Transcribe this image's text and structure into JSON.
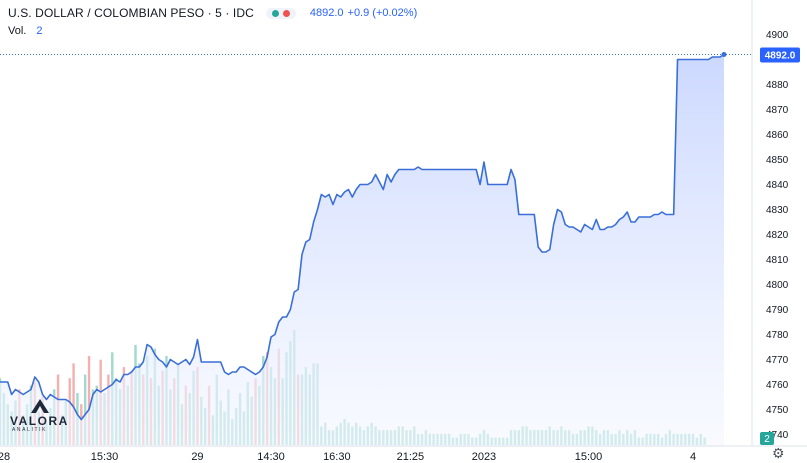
{
  "header": {
    "symbol_title": "U.S. DOLLAR / COLOMBIAN PESO · 5 · IDC",
    "last_price": "4892.0",
    "change": "+0.9 (+0.02%)",
    "volume_label": "Vol.",
    "volume_value": "2"
  },
  "colors": {
    "line": "#3a6fd8",
    "area_top": "#c9d6ff",
    "area_bottom": "#f4f7ff",
    "volume_up": "#9fd9cf",
    "volume_down": "#f4b0b0",
    "price_label_bg": "#2962ff",
    "volume_label_bg": "#26a69a",
    "status_green": "#26a69a",
    "status_red": "#ef5350"
  },
  "icons": {
    "status": [
      "green-dot-icon",
      "red-dot-icon"
    ],
    "settings": "gear-icon",
    "logo": "valora-analitik-logo"
  },
  "logo": {
    "word": "VALORA",
    "sub": "ANALITIK"
  },
  "chart_data": {
    "type": "area",
    "title": "U.S. DOLLAR / COLOMBIAN PESO · 5 · IDC",
    "xlabel": "",
    "ylabel": "",
    "ylim": [
      4735,
      4905
    ],
    "y_ticks": [
      4740,
      4750,
      4760,
      4770,
      4780,
      4790,
      4800,
      4810,
      4820,
      4830,
      4840,
      4850,
      4860,
      4870,
      4880,
      4890,
      4900
    ],
    "x_tick_labels": [
      {
        "label": "28",
        "index": 0
      },
      {
        "label": "15:30",
        "index": 27
      },
      {
        "label": "29",
        "index": 51
      },
      {
        "label": "14:30",
        "index": 70
      },
      {
        "label": "16:30",
        "index": 87
      },
      {
        "label": "21:25",
        "index": 106
      },
      {
        "label": "2023",
        "index": 125
      },
      {
        "label": "15:00",
        "index": 152
      },
      {
        "label": "4",
        "index": 179
      }
    ],
    "last_value_label": "4892.0",
    "volume_label": "2",
    "grid": false,
    "series": [
      {
        "values": [
          4761,
          4761,
          4761,
          4756,
          4758,
          4757,
          4756,
          4757,
          4758,
          4763,
          4761,
          4756,
          4754,
          4756,
          4755,
          4754,
          4754,
          4754,
          4753,
          4751,
          4748,
          4746,
          4748,
          4750,
          4756,
          4758,
          4757,
          4758,
          4759,
          4760,
          4762,
          4761,
          4764,
          4764,
          4765,
          4767,
          4767,
          4769,
          4776,
          4775,
          4772,
          4770,
          4769,
          4767,
          4770,
          4769,
          4768,
          4769,
          4770,
          4768,
          4771,
          4778,
          4769,
          4769,
          4769,
          4769,
          4769,
          4769,
          4765,
          4764,
          4765,
          4765,
          4767,
          4767,
          4766,
          4765,
          4764,
          4765,
          4767,
          4771,
          4779,
          4780,
          4785,
          4787,
          4787,
          4790,
          4797,
          4798,
          4812,
          4817,
          4818,
          4825,
          4830,
          4836,
          4835,
          4836,
          4832,
          4836,
          4835,
          4837,
          4838,
          4835,
          4838,
          4840,
          4840,
          4840,
          4841,
          4844,
          4841,
          4838,
          4844,
          4841,
          4844,
          4846,
          4846,
          4846,
          4846,
          4846,
          4847,
          4846,
          4846,
          4846,
          4846,
          4846,
          4846,
          4846,
          4846,
          4846,
          4846,
          4846,
          4846,
          4846,
          4846,
          4846,
          4840,
          4849,
          4840,
          4840,
          4840,
          4840,
          4840,
          4840,
          4846,
          4842,
          4828,
          4828,
          4828,
          4828,
          4828,
          4815,
          4813,
          4813,
          4814,
          4824,
          4830,
          4829,
          4824,
          4823,
          4823,
          4822,
          4821,
          4824,
          4823,
          4822,
          4826,
          4822,
          4822,
          4823,
          4823,
          4824,
          4826,
          4827,
          4829,
          4825,
          4825,
          4827,
          4827,
          4827,
          4827,
          4828,
          4828,
          4829,
          4828,
          4828,
          4828,
          4890,
          4890,
          4890,
          4890,
          4890,
          4890,
          4890,
          4890,
          4890,
          4891,
          4891,
          4891,
          4892
        ]
      }
    ],
    "volume_series": {
      "values": [
        18,
        14,
        11,
        9,
        12,
        15,
        8,
        11,
        16,
        17,
        9,
        13,
        6,
        10,
        15,
        19,
        8,
        12,
        18,
        22,
        14,
        11,
        19,
        24,
        15,
        16,
        23,
        14,
        19,
        25,
        18,
        15,
        21,
        16,
        20,
        27,
        22,
        19,
        24,
        18,
        26,
        16,
        20,
        24,
        15,
        18,
        22,
        11,
        16,
        14,
        20,
        21,
        13,
        10,
        16,
        8,
        19,
        12,
        9,
        15,
        7,
        10,
        14,
        9,
        17,
        13,
        18,
        16,
        24,
        25,
        21,
        18,
        26,
        18,
        25,
        28,
        31,
        19,
        19,
        21,
        19,
        22,
        22,
        5,
        6,
        4,
        4,
        5,
        6,
        7,
        6,
        5,
        6,
        5,
        4,
        5,
        6,
        5,
        4,
        4,
        4,
        4,
        4,
        5,
        5,
        4,
        4,
        5,
        3,
        3,
        4,
        3,
        3,
        3,
        3,
        3,
        3,
        2,
        2,
        3,
        3,
        3,
        2,
        2,
        3,
        4,
        3,
        2,
        2,
        2,
        2,
        2,
        4,
        4,
        4,
        5,
        5,
        4,
        4,
        4,
        4,
        4,
        5,
        4,
        4,
        5,
        4,
        4,
        3,
        3,
        4,
        4,
        5,
        5,
        4,
        3,
        4,
        4,
        3,
        3,
        4,
        3,
        4,
        3,
        4,
        2,
        2,
        3,
        3,
        3,
        3,
        2,
        3,
        4,
        3,
        3,
        3,
        3,
        3,
        3,
        2,
        3,
        2
      ],
      "up": [
        1,
        1,
        1,
        1,
        1,
        0,
        1,
        1,
        1,
        0,
        1,
        0,
        1,
        1,
        1,
        0,
        1,
        1,
        0,
        0,
        1,
        0,
        1,
        0,
        1,
        1,
        0,
        1,
        0,
        1,
        1,
        1,
        0,
        1,
        0,
        1,
        1,
        0,
        1,
        0,
        1,
        1,
        0,
        1,
        1,
        0,
        1,
        1,
        0,
        1,
        1,
        0,
        1,
        1,
        0,
        1,
        1,
        1,
        1,
        1,
        1,
        1,
        1,
        1,
        1,
        1,
        0,
        1,
        1,
        0,
        1,
        1,
        0,
        1,
        1,
        1,
        1,
        0,
        1,
        1,
        1,
        1,
        1,
        1,
        1,
        1,
        1,
        1,
        1,
        1,
        1,
        1,
        1,
        1,
        1,
        1,
        1,
        1,
        1,
        1,
        1,
        1,
        1,
        1,
        1,
        1,
        1,
        1,
        1,
        1,
        1,
        1,
        1,
        1,
        1,
        1,
        1,
        1,
        1,
        1,
        1,
        1,
        1,
        1,
        1,
        1,
        1,
        1,
        1,
        1,
        1,
        1,
        1,
        1,
        1,
        1,
        1,
        1,
        1,
        1,
        1,
        1,
        1,
        1,
        1,
        1,
        1,
        1,
        1,
        1,
        1,
        1,
        1,
        1,
        1,
        1,
        1,
        1,
        1,
        1,
        1,
        1,
        1,
        1,
        1,
        1,
        1,
        1,
        1,
        1,
        1,
        1,
        1,
        1,
        1,
        1,
        1,
        1,
        1,
        1,
        1,
        1,
        1
      ]
    }
  }
}
